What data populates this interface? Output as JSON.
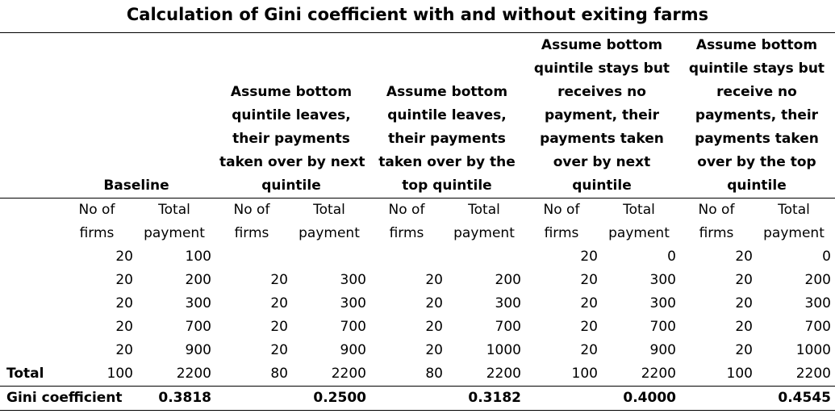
{
  "title": "Calculation of Gini coefficient with and without exiting farms",
  "groups": [
    {
      "lines": [
        "Baseline"
      ]
    },
    {
      "lines": [
        "Assume bottom",
        "quintile leaves,",
        "their payments",
        "taken over by next",
        "quintile"
      ]
    },
    {
      "lines": [
        "Assume bottom",
        "quintile leaves,",
        "their payments",
        "taken over by the",
        "top quintile"
      ]
    },
    {
      "lines": [
        "Assume bottom",
        "quintile stays but",
        "receives no",
        "payment, their",
        "payments taken",
        "over by next",
        "quintile"
      ]
    },
    {
      "lines": [
        "Assume bottom",
        "quintile stays but",
        "receive no",
        "payments, their",
        "payments taken",
        "over by the top",
        "quintile"
      ]
    }
  ],
  "subheaders": {
    "firms": [
      "No of",
      "firms"
    ],
    "payment": [
      "Total",
      "payment"
    ]
  },
  "rows": [
    [
      "20",
      "100",
      "",
      "",
      "",
      "",
      "20",
      "0",
      "20",
      "0"
    ],
    [
      "20",
      "200",
      "20",
      "300",
      "20",
      "200",
      "20",
      "300",
      "20",
      "200"
    ],
    [
      "20",
      "300",
      "20",
      "300",
      "20",
      "300",
      "20",
      "300",
      "20",
      "300"
    ],
    [
      "20",
      "700",
      "20",
      "700",
      "20",
      "700",
      "20",
      "700",
      "20",
      "700"
    ],
    [
      "20",
      "900",
      "20",
      "900",
      "20",
      "1000",
      "20",
      "900",
      "20",
      "1000"
    ]
  ],
  "total": {
    "label": "Total",
    "values": [
      "100",
      "2200",
      "80",
      "2200",
      "80",
      "2200",
      "100",
      "2200",
      "100",
      "2200"
    ]
  },
  "gini": {
    "label": "Gini coefficient",
    "values": [
      "0.3818",
      "0.2500",
      "0.3182",
      "0.4000",
      "0.4545"
    ]
  }
}
